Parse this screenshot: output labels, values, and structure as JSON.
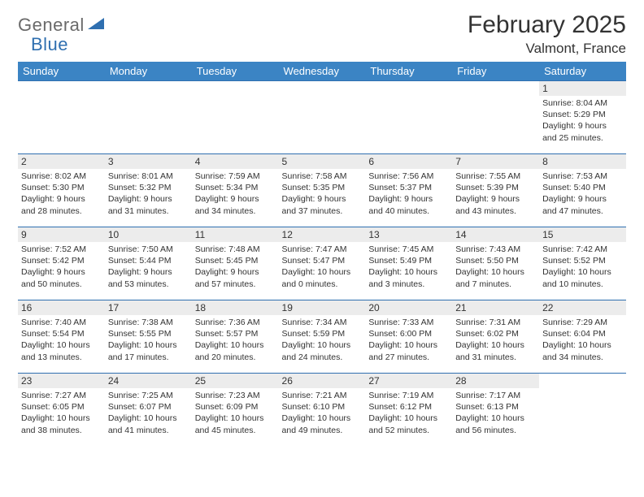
{
  "logo": {
    "part1": "General",
    "part2": "Blue"
  },
  "title": "February 2025",
  "location": "Valmont, France",
  "headerColor": "#3b84c4",
  "borderColor": "#2f6fb0",
  "weekdays": [
    "Sunday",
    "Monday",
    "Tuesday",
    "Wednesday",
    "Thursday",
    "Friday",
    "Saturday"
  ],
  "firstWeekday": 6,
  "daysInMonth": 28,
  "days": {
    "1": {
      "sunrise": "8:04 AM",
      "sunset": "5:29 PM",
      "daylight": "9 hours and 25 minutes."
    },
    "2": {
      "sunrise": "8:02 AM",
      "sunset": "5:30 PM",
      "daylight": "9 hours and 28 minutes."
    },
    "3": {
      "sunrise": "8:01 AM",
      "sunset": "5:32 PM",
      "daylight": "9 hours and 31 minutes."
    },
    "4": {
      "sunrise": "7:59 AM",
      "sunset": "5:34 PM",
      "daylight": "9 hours and 34 minutes."
    },
    "5": {
      "sunrise": "7:58 AM",
      "sunset": "5:35 PM",
      "daylight": "9 hours and 37 minutes."
    },
    "6": {
      "sunrise": "7:56 AM",
      "sunset": "5:37 PM",
      "daylight": "9 hours and 40 minutes."
    },
    "7": {
      "sunrise": "7:55 AM",
      "sunset": "5:39 PM",
      "daylight": "9 hours and 43 minutes."
    },
    "8": {
      "sunrise": "7:53 AM",
      "sunset": "5:40 PM",
      "daylight": "9 hours and 47 minutes."
    },
    "9": {
      "sunrise": "7:52 AM",
      "sunset": "5:42 PM",
      "daylight": "9 hours and 50 minutes."
    },
    "10": {
      "sunrise": "7:50 AM",
      "sunset": "5:44 PM",
      "daylight": "9 hours and 53 minutes."
    },
    "11": {
      "sunrise": "7:48 AM",
      "sunset": "5:45 PM",
      "daylight": "9 hours and 57 minutes."
    },
    "12": {
      "sunrise": "7:47 AM",
      "sunset": "5:47 PM",
      "daylight": "10 hours and 0 minutes."
    },
    "13": {
      "sunrise": "7:45 AM",
      "sunset": "5:49 PM",
      "daylight": "10 hours and 3 minutes."
    },
    "14": {
      "sunrise": "7:43 AM",
      "sunset": "5:50 PM",
      "daylight": "10 hours and 7 minutes."
    },
    "15": {
      "sunrise": "7:42 AM",
      "sunset": "5:52 PM",
      "daylight": "10 hours and 10 minutes."
    },
    "16": {
      "sunrise": "7:40 AM",
      "sunset": "5:54 PM",
      "daylight": "10 hours and 13 minutes."
    },
    "17": {
      "sunrise": "7:38 AM",
      "sunset": "5:55 PM",
      "daylight": "10 hours and 17 minutes."
    },
    "18": {
      "sunrise": "7:36 AM",
      "sunset": "5:57 PM",
      "daylight": "10 hours and 20 minutes."
    },
    "19": {
      "sunrise": "7:34 AM",
      "sunset": "5:59 PM",
      "daylight": "10 hours and 24 minutes."
    },
    "20": {
      "sunrise": "7:33 AM",
      "sunset": "6:00 PM",
      "daylight": "10 hours and 27 minutes."
    },
    "21": {
      "sunrise": "7:31 AM",
      "sunset": "6:02 PM",
      "daylight": "10 hours and 31 minutes."
    },
    "22": {
      "sunrise": "7:29 AM",
      "sunset": "6:04 PM",
      "daylight": "10 hours and 34 minutes."
    },
    "23": {
      "sunrise": "7:27 AM",
      "sunset": "6:05 PM",
      "daylight": "10 hours and 38 minutes."
    },
    "24": {
      "sunrise": "7:25 AM",
      "sunset": "6:07 PM",
      "daylight": "10 hours and 41 minutes."
    },
    "25": {
      "sunrise": "7:23 AM",
      "sunset": "6:09 PM",
      "daylight": "10 hours and 45 minutes."
    },
    "26": {
      "sunrise": "7:21 AM",
      "sunset": "6:10 PM",
      "daylight": "10 hours and 49 minutes."
    },
    "27": {
      "sunrise": "7:19 AM",
      "sunset": "6:12 PM",
      "daylight": "10 hours and 52 minutes."
    },
    "28": {
      "sunrise": "7:17 AM",
      "sunset": "6:13 PM",
      "daylight": "10 hours and 56 minutes."
    }
  },
  "labels": {
    "sunrise": "Sunrise:",
    "sunset": "Sunset:",
    "daylight": "Daylight:"
  }
}
